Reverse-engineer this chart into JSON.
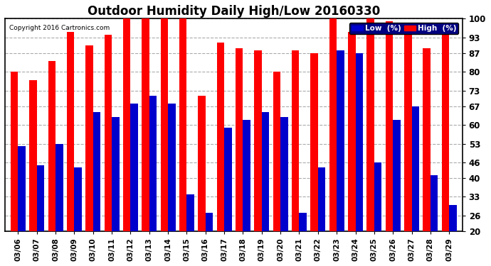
{
  "title": "Outdoor Humidity Daily High/Low 20160330",
  "copyright": "Copyright 2016 Cartronics.com",
  "dates": [
    "03/06",
    "03/07",
    "03/08",
    "03/09",
    "03/10",
    "03/11",
    "03/12",
    "03/13",
    "03/14",
    "03/15",
    "03/16",
    "03/17",
    "03/18",
    "03/19",
    "03/20",
    "03/21",
    "03/22",
    "03/23",
    "03/24",
    "03/25",
    "03/26",
    "03/27",
    "03/28",
    "03/29"
  ],
  "high": [
    80,
    77,
    84,
    95,
    90,
    94,
    100,
    100,
    100,
    100,
    71,
    91,
    89,
    88,
    80,
    88,
    87,
    100,
    95,
    100,
    99,
    95,
    89,
    94
  ],
  "low": [
    52,
    45,
    53,
    44,
    65,
    63,
    68,
    71,
    68,
    34,
    27,
    59,
    62,
    65,
    63,
    27,
    44,
    88,
    87,
    46,
    62,
    67,
    41,
    30
  ],
  "ylim": [
    20,
    100
  ],
  "yticks": [
    20,
    26,
    33,
    40,
    46,
    53,
    60,
    67,
    73,
    80,
    87,
    93,
    100
  ],
  "bar_width": 0.4,
  "high_color": "#ff0000",
  "low_color": "#0000cc",
  "bg_color": "#ffffff",
  "plot_bg_color": "#ffffff",
  "border_color": "#000000",
  "grid_color": "#aaaaaa",
  "title_fontsize": 12,
  "legend_low_label": "Low  (%)",
  "legend_high_label": "High  (%)"
}
